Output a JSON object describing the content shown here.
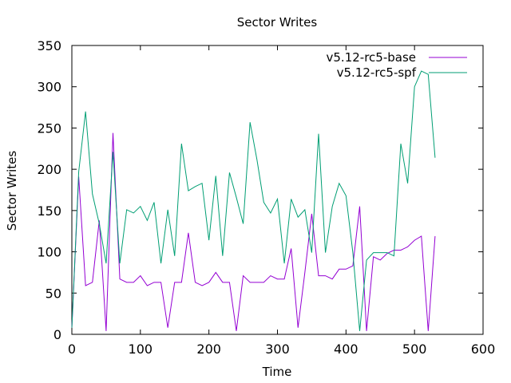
{
  "chart_data": {
    "type": "line",
    "title": "Sector Writes",
    "xlabel": "Time",
    "ylabel": "Sector Writes",
    "xlim": [
      0,
      600
    ],
    "ylim": [
      0,
      350
    ],
    "xticks": [
      0,
      100,
      200,
      300,
      400,
      500,
      600
    ],
    "yticks": [
      0,
      50,
      100,
      150,
      200,
      250,
      300,
      350
    ],
    "grid": false,
    "legend_position": "top-right",
    "x": [
      0,
      10,
      20,
      30,
      40,
      50,
      60,
      70,
      80,
      90,
      100,
      110,
      120,
      130,
      140,
      150,
      160,
      170,
      180,
      190,
      200,
      210,
      220,
      230,
      240,
      250,
      260,
      270,
      280,
      290,
      300,
      310,
      320,
      330,
      340,
      350,
      360,
      370,
      380,
      390,
      400,
      410,
      420,
      430,
      440,
      450,
      460,
      470,
      480,
      490,
      500,
      510,
      520,
      530
    ],
    "series": [
      {
        "name": "v5.12-rc5-base",
        "color": "#9400d3",
        "values": [
          8,
          191,
          59,
          63,
          138,
          4,
          244,
          67,
          63,
          63,
          71,
          59,
          63,
          63,
          8,
          63,
          63,
          123,
          63,
          59,
          63,
          75,
          63,
          63,
          4,
          71,
          63,
          63,
          63,
          71,
          67,
          67,
          104,
          8,
          75,
          146,
          71,
          71,
          67,
          79,
          79,
          83,
          155,
          4,
          94,
          90,
          98,
          102,
          102,
          106,
          114,
          119,
          4,
          119
        ]
      },
      {
        "name": "v5.12-rc5-spf",
        "color": "#009e73",
        "values": [
          8,
          197,
          270,
          170,
          134,
          86,
          221,
          86,
          151,
          147,
          155,
          138,
          160,
          86,
          151,
          95,
          231,
          174,
          179,
          183,
          114,
          192,
          95,
          196,
          166,
          134,
          257,
          212,
          160,
          147,
          164,
          86,
          164,
          142,
          151,
          99,
          243,
          99,
          155,
          183,
          168,
          99,
          4,
          90,
          99,
          99,
          99,
          95,
          231,
          183,
          300,
          319,
          315,
          214
        ]
      }
    ]
  }
}
